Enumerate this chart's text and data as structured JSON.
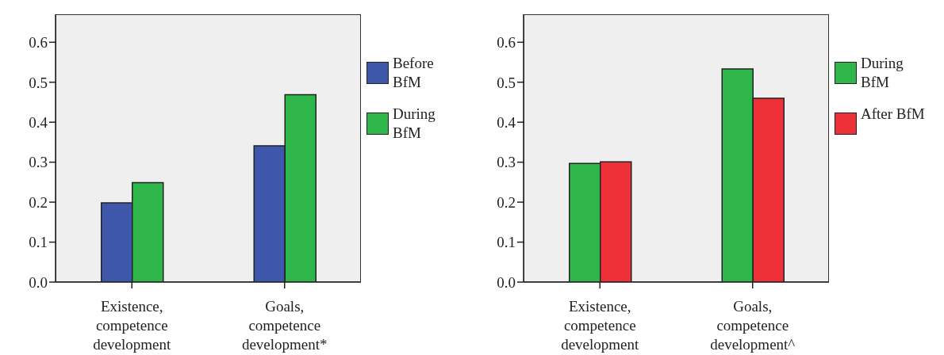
{
  "chart_data": [
    {
      "type": "bar",
      "categories": [
        "Existence, competence development",
        "Goals, competence development*"
      ],
      "series": [
        {
          "name": "Before BfM",
          "color": "#3f57aa",
          "values": [
            0.198,
            0.341
          ]
        },
        {
          "name": "During BfM",
          "color": "#2fb64a",
          "values": [
            0.249,
            0.469
          ]
        }
      ],
      "ylim": [
        0,
        0.67
      ],
      "yticks": [
        {
          "value": 0,
          "label": "0.0"
        },
        {
          "value": 0.1,
          "label": "0.1"
        },
        {
          "value": 0.2,
          "label": "0.2"
        },
        {
          "value": 0.3,
          "label": "0.3"
        },
        {
          "value": 0.4,
          "label": "0.4"
        },
        {
          "value": 0.5,
          "label": "0.5"
        },
        {
          "value": 0.6,
          "label": "0.6"
        }
      ],
      "grid": false,
      "legend": "right"
    },
    {
      "type": "bar",
      "categories": [
        "Existence, competence development",
        "Goals, competence development^"
      ],
      "series": [
        {
          "name": "During BfM",
          "color": "#2fb64a",
          "values": [
            0.297,
            0.533
          ]
        },
        {
          "name": "After BfM",
          "color": "#ee3038",
          "values": [
            0.301,
            0.46
          ]
        }
      ],
      "ylim": [
        0,
        0.67
      ],
      "yticks": [
        {
          "value": 0,
          "label": "0.0"
        },
        {
          "value": 0.1,
          "label": "0.1"
        },
        {
          "value": 0.2,
          "label": "0.2"
        },
        {
          "value": 0.3,
          "label": "0.3"
        },
        {
          "value": 0.4,
          "label": "0.4"
        },
        {
          "value": 0.5,
          "label": "0.5"
        },
        {
          "value": 0.6,
          "label": "0.6"
        }
      ],
      "grid": false,
      "legend": "right"
    }
  ]
}
